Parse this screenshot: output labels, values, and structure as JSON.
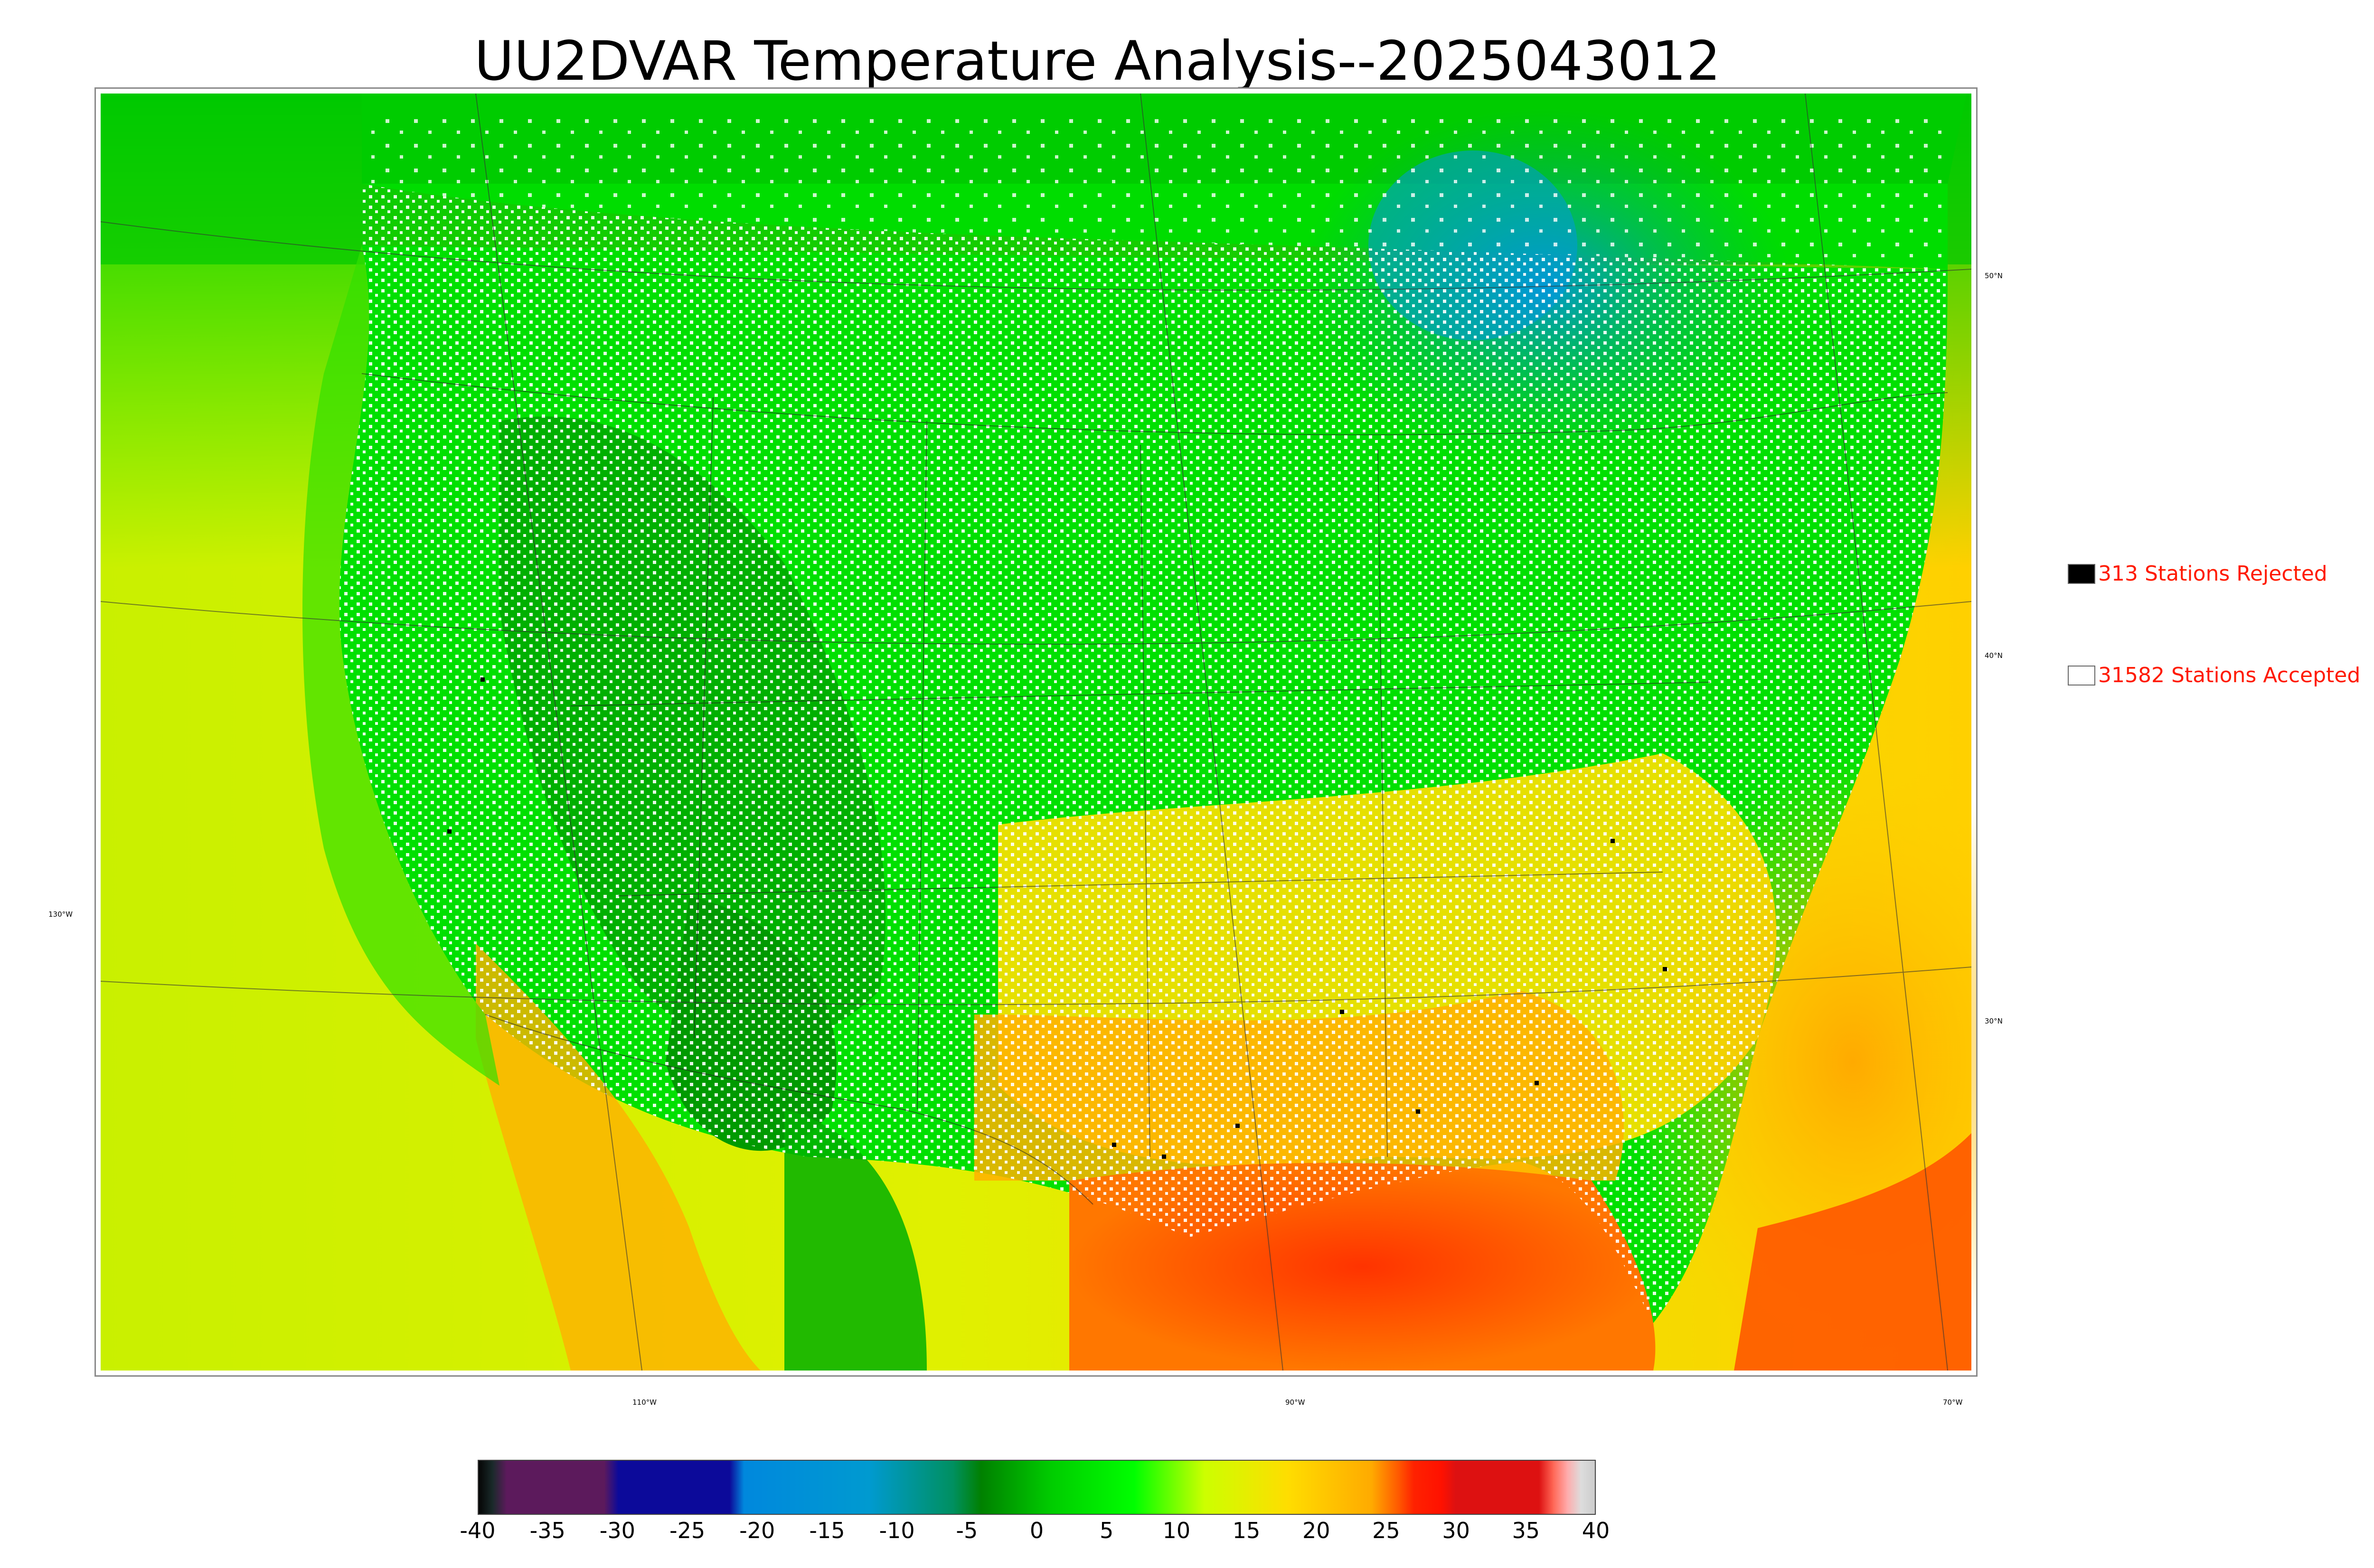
{
  "title": "UU2DVAR Temperature Analysis--2025043012",
  "legend": {
    "rejected": {
      "label": "313 Stations Rejected",
      "color": "#000000"
    },
    "accepted": {
      "label": "31582 Stations Accepted",
      "color": "#ffffff"
    }
  },
  "graticule_labels": {
    "lat_50": "50°N",
    "lat_40": "40°N",
    "lat_30": "30°N",
    "lon_130": "130°W",
    "lon_110": "110°W",
    "lon_90": "90°W",
    "lon_70": "70°W"
  },
  "colorbar": {
    "ticks": [
      "-40",
      "-35",
      "-30",
      "-25",
      "-20",
      "-15",
      "-10",
      "-5",
      "0",
      "5",
      "10",
      "15",
      "20",
      "25",
      "30",
      "35",
      "40"
    ],
    "range": [
      -40,
      40
    ],
    "stops": [
      {
        "v": -40,
        "color": "#050505"
      },
      {
        "v": -39,
        "color": "#1a2a2a"
      },
      {
        "v": -38,
        "color": "#5c1a5c"
      },
      {
        "v": -31,
        "color": "#5c1a5c"
      },
      {
        "v": -30,
        "color": "#0c0a9a"
      },
      {
        "v": -22,
        "color": "#0c0a9a"
      },
      {
        "v": -21,
        "color": "#0088dd"
      },
      {
        "v": -12,
        "color": "#009ad0"
      },
      {
        "v": -6,
        "color": "#009060"
      },
      {
        "v": -4,
        "color": "#008000"
      },
      {
        "v": 1,
        "color": "#00cc00"
      },
      {
        "v": 7,
        "color": "#00ff00"
      },
      {
        "v": 12,
        "color": "#ccff00"
      },
      {
        "v": 18,
        "color": "#ffdd00"
      },
      {
        "v": 24,
        "color": "#ffaa00"
      },
      {
        "v": 26,
        "color": "#ff5500"
      },
      {
        "v": 27,
        "color": "#ff2200"
      },
      {
        "v": 29,
        "color": "#ff1100"
      },
      {
        "v": 30,
        "color": "#dd1111"
      },
      {
        "v": 36,
        "color": "#dd1111"
      },
      {
        "v": 37,
        "color": "#ff6655"
      },
      {
        "v": 38,
        "color": "#ffaaaa"
      },
      {
        "v": 39,
        "color": "#dddddd"
      },
      {
        "v": 40,
        "color": "#cccccc"
      }
    ]
  }
}
